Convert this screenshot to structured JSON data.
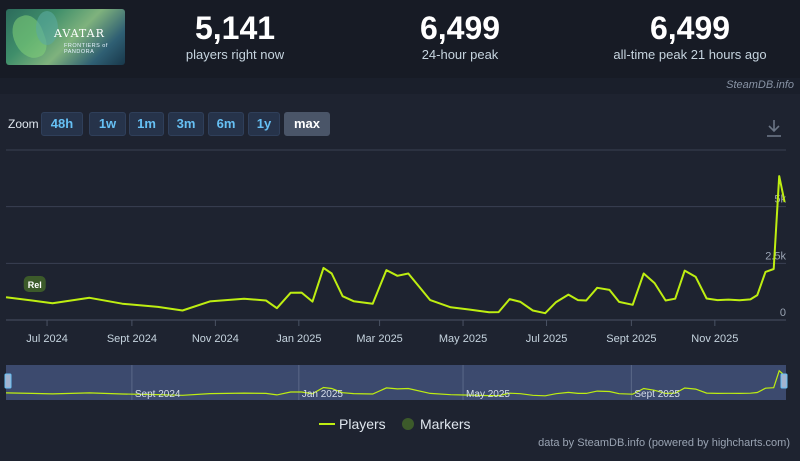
{
  "header": {
    "game_title": "AVATAR",
    "game_subtitle": "FRONTIERS of PANDORA",
    "stats": [
      {
        "value": "5,141",
        "label": "players right now"
      },
      {
        "value": "6,499",
        "label": "24-hour peak"
      },
      {
        "value": "6,499",
        "label": "all-time peak 21 hours ago"
      }
    ],
    "brand": "SteamDB.info"
  },
  "zoom": {
    "label": "Zoom",
    "buttons": [
      "48h",
      "1w",
      "1m",
      "3m",
      "6m",
      "1y",
      "max"
    ],
    "active": "max"
  },
  "legend": {
    "players": "Players",
    "markers": "Markers"
  },
  "credit": "data by SteamDB.info (powered by highcharts.com)",
  "colors": {
    "line": "#beee11",
    "marker": "#3c5a2a",
    "navigator_bg": "#3c4a6e"
  },
  "chart_data": {
    "type": "line",
    "series": [
      {
        "name": "Players",
        "points": [
          [
            "2024-06-01",
            1000
          ],
          [
            "2024-06-20",
            860
          ],
          [
            "2024-07-05",
            740
          ],
          [
            "2024-08-01",
            980
          ],
          [
            "2024-08-25",
            720
          ],
          [
            "2024-09-20",
            580
          ],
          [
            "2024-10-08",
            420
          ],
          [
            "2024-10-28",
            820
          ],
          [
            "2024-11-22",
            940
          ],
          [
            "2024-12-08",
            860
          ],
          [
            "2024-12-16",
            520
          ],
          [
            "2024-12-26",
            1200
          ],
          [
            "2025-01-03",
            1210
          ],
          [
            "2025-01-11",
            810
          ],
          [
            "2025-01-19",
            2300
          ],
          [
            "2025-01-25",
            2050
          ],
          [
            "2025-02-02",
            1050
          ],
          [
            "2025-02-10",
            830
          ],
          [
            "2025-02-24",
            720
          ],
          [
            "2025-03-06",
            2200
          ],
          [
            "2025-03-14",
            1950
          ],
          [
            "2025-03-22",
            2050
          ],
          [
            "2025-04-07",
            880
          ],
          [
            "2025-04-22",
            560
          ],
          [
            "2025-05-06",
            460
          ],
          [
            "2025-05-20",
            340
          ],
          [
            "2025-05-27",
            350
          ],
          [
            "2025-06-04",
            920
          ],
          [
            "2025-06-12",
            800
          ],
          [
            "2025-06-21",
            420
          ],
          [
            "2025-06-30",
            300
          ],
          [
            "2025-07-08",
            790
          ],
          [
            "2025-07-17",
            1120
          ],
          [
            "2025-07-24",
            880
          ],
          [
            "2025-07-30",
            860
          ],
          [
            "2025-08-07",
            1420
          ],
          [
            "2025-08-16",
            1330
          ],
          [
            "2025-08-23",
            800
          ],
          [
            "2025-09-02",
            670
          ],
          [
            "2025-09-10",
            2050
          ],
          [
            "2025-09-18",
            1630
          ],
          [
            "2025-09-26",
            860
          ],
          [
            "2025-10-03",
            940
          ],
          [
            "2025-10-10",
            2180
          ],
          [
            "2025-10-18",
            1900
          ],
          [
            "2025-10-26",
            950
          ],
          [
            "2025-11-03",
            880
          ],
          [
            "2025-11-11",
            900
          ],
          [
            "2025-11-19",
            870
          ],
          [
            "2025-11-27",
            910
          ],
          [
            "2025-12-02",
            1100
          ],
          [
            "2025-12-08",
            2120
          ],
          [
            "2025-12-14",
            2250
          ],
          [
            "2025-12-18",
            6350
          ],
          [
            "2025-12-22",
            5200
          ]
        ]
      }
    ],
    "markers": [
      {
        "date": "2024-06-22",
        "label": "Rel"
      }
    ],
    "x_ticks": [
      {
        "date": "2024-07-01",
        "label": "Jul 2024"
      },
      {
        "date": "2024-09-01",
        "label": "Sept 2024"
      },
      {
        "date": "2024-11-01",
        "label": "Nov 2024"
      },
      {
        "date": "2025-01-01",
        "label": "Jan 2025"
      },
      {
        "date": "2025-03-01",
        "label": "Mar 2025"
      },
      {
        "date": "2025-05-01",
        "label": "May 2025"
      },
      {
        "date": "2025-07-01",
        "label": "Jul 2025"
      },
      {
        "date": "2025-09-01",
        "label": "Sept 2025"
      },
      {
        "date": "2025-11-01",
        "label": "Nov 2025"
      }
    ],
    "y_ticks": [
      {
        "value": 0,
        "label": "0"
      },
      {
        "value": 2500,
        "label": "2.5k"
      },
      {
        "value": 5000,
        "label": "5k"
      }
    ],
    "xlim": [
      "2024-06-01",
      "2025-12-23"
    ],
    "ylim": [
      0,
      7500
    ],
    "grid": true,
    "navigator": {
      "labels": [
        {
          "date": "2024-09-01",
          "label": "Sept 2024"
        },
        {
          "date": "2025-01-01",
          "label": "Jan 2025"
        },
        {
          "date": "2025-05-01",
          "label": "May 2025"
        },
        {
          "date": "2025-09-01",
          "label": "Sept 2025"
        }
      ]
    }
  }
}
